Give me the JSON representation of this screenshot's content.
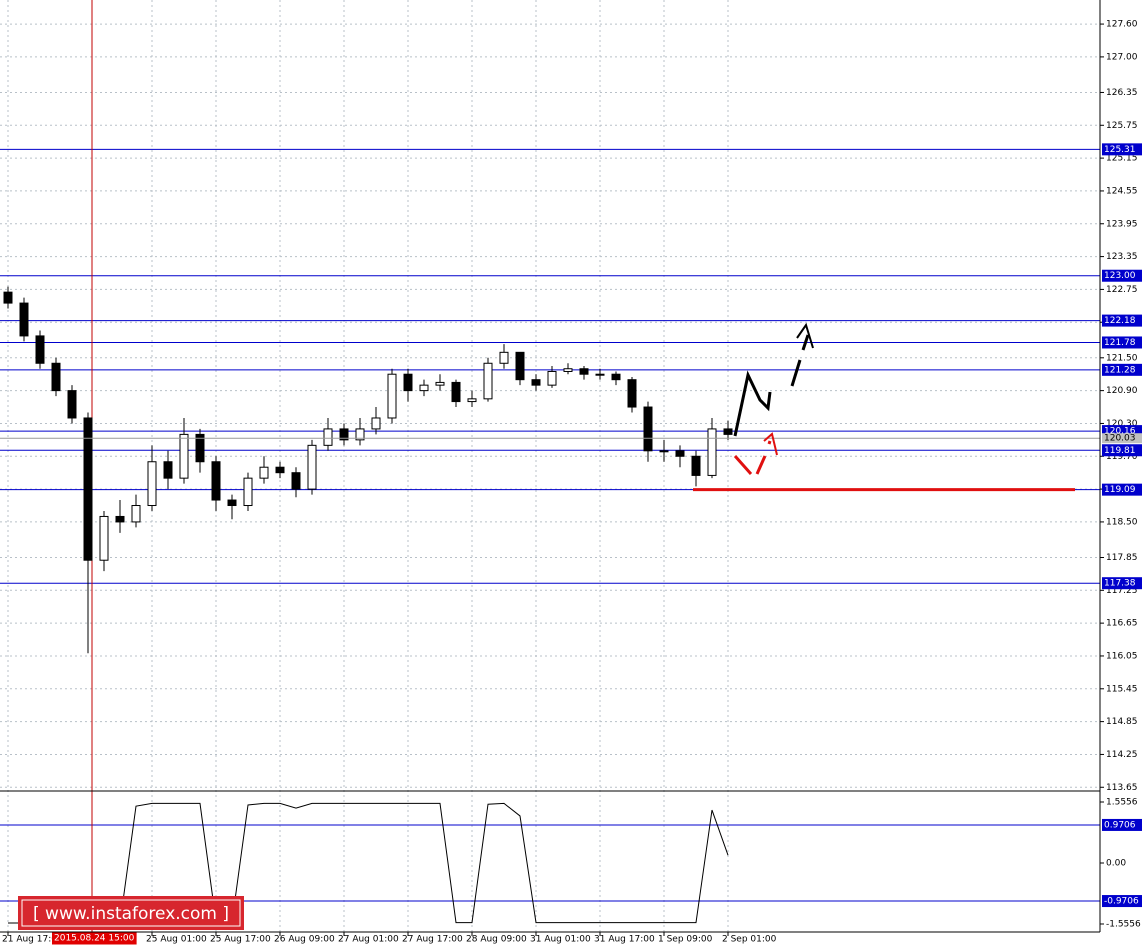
{
  "chart_data": [
    {
      "type": "candlestick",
      "categories": [
        "21 Aug 17:00",
        null,
        null,
        null,
        null,
        "2015.08.24 15:00",
        null,
        null,
        null,
        "25 Aug 01:00",
        null,
        null,
        null,
        "25 Aug 17:00",
        null,
        null,
        null,
        "26 Aug 09:00",
        null,
        null,
        null,
        "27 Aug 01:00",
        null,
        null,
        null,
        "27 Aug 17:00",
        null,
        null,
        null,
        "28 Aug 09:00",
        null,
        null,
        null,
        "31 Aug 01:00",
        null,
        null,
        null,
        "31 Aug 17:00",
        null,
        null,
        null,
        "1 Sep 09:00",
        null,
        null,
        null,
        "2 Sep 01:00"
      ],
      "crosshair": "2015.08.24 15:00",
      "open": [
        122.7,
        122.5,
        121.9,
        121.4,
        120.9,
        120.4,
        117.8,
        118.6,
        118.5,
        118.8,
        119.6,
        119.3,
        120.1,
        119.6,
        118.9,
        118.8,
        119.3,
        119.5,
        119.4,
        119.1,
        119.9,
        120.2,
        120.0,
        120.2,
        120.4,
        121.2,
        120.9,
        121.0,
        121.05,
        120.7,
        120.75,
        121.4,
        121.6,
        121.1,
        121.0,
        121.25,
        121.3,
        121.2,
        121.2,
        121.1,
        120.6,
        119.8,
        119.8,
        119.7,
        119.35,
        120.2
      ],
      "high": [
        122.8,
        122.6,
        122.0,
        121.5,
        121.0,
        120.5,
        118.7,
        118.9,
        119.0,
        119.9,
        119.8,
        120.4,
        120.2,
        119.7,
        119.0,
        119.4,
        119.7,
        119.6,
        119.5,
        120.0,
        120.4,
        120.3,
        120.4,
        120.6,
        121.3,
        121.3,
        121.1,
        121.2,
        121.1,
        120.9,
        121.5,
        121.75,
        121.6,
        121.2,
        121.35,
        121.4,
        121.35,
        121.3,
        121.25,
        121.15,
        120.7,
        120.0,
        119.9,
        119.8,
        120.4,
        120.35
      ],
      "low": [
        122.4,
        121.8,
        121.3,
        120.8,
        120.3,
        116.1,
        117.6,
        118.3,
        118.4,
        118.7,
        119.1,
        119.2,
        119.4,
        118.7,
        118.55,
        118.7,
        119.2,
        119.3,
        118.95,
        119.0,
        119.8,
        119.9,
        119.9,
        120.1,
        120.3,
        120.7,
        120.8,
        120.9,
        120.6,
        120.6,
        120.7,
        121.3,
        121.0,
        120.9,
        120.95,
        121.2,
        121.1,
        121.1,
        121.0,
        120.5,
        119.6,
        119.6,
        119.5,
        119.15,
        119.3,
        120.0
      ],
      "close": [
        122.5,
        121.9,
        121.4,
        120.9,
        120.4,
        117.8,
        118.6,
        118.5,
        118.8,
        119.6,
        119.3,
        120.1,
        119.6,
        118.9,
        118.8,
        119.3,
        119.5,
        119.4,
        119.1,
        119.9,
        120.2,
        120.0,
        120.2,
        120.4,
        121.2,
        120.9,
        121.0,
        121.05,
        120.7,
        120.75,
        121.4,
        121.6,
        121.1,
        121.0,
        121.25,
        121.3,
        121.2,
        121.2,
        121.1,
        120.6,
        119.8,
        119.8,
        119.7,
        119.35,
        120.2,
        120.1
      ],
      "ylim": [
        113.6,
        128.04
      ],
      "yticks": [
        {
          "value": 127.6,
          "label": "127.60"
        },
        {
          "value": 127,
          "label": "127.00"
        },
        126.35,
        125.75,
        125.15,
        124.55,
        123.95,
        123.35,
        122.75,
        122.15,
        {
          "value": 121.5,
          "label": "121.50"
        },
        {
          "value": 120.9,
          "label": "120.90"
        },
        {
          "value": 120.3,
          "label": "120.30"
        },
        {
          "value": 119.7,
          "label": "119.70"
        },
        {
          "value": 119.1,
          "label": "119.10"
        },
        {
          "value": 118.5,
          "label": "118.50"
        },
        117.85,
        117.25,
        116.65,
        116.05,
        115.45,
        114.85,
        114.25,
        113.65
      ],
      "levels": [
        125.31,
        {
          "value": 123,
          "label": "123.00"
        },
        122.18,
        121.78,
        121.28,
        120.16,
        119.81,
        119.09,
        117.38
      ],
      "level_color": "#0000cc",
      "last_price": 120.03,
      "support": 119.09,
      "support_color": "#e01010",
      "grid": true,
      "watermark": "[ www.instaforex.com ]"
    },
    {
      "type": "line",
      "values": [
        -1.53,
        -1.53,
        -1.53,
        -1.53,
        -1.53,
        -1.53,
        -1.53,
        -1.53,
        1.45,
        1.52,
        1.52,
        1.52,
        1.52,
        -1.5,
        -1.5,
        1.48,
        1.52,
        1.52,
        1.4,
        1.52,
        1.52,
        1.52,
        1.52,
        1.52,
        1.52,
        1.52,
        1.52,
        1.52,
        -1.52,
        -1.52,
        1.5,
        1.52,
        1.2,
        -1.52,
        -1.52,
        -1.52,
        -1.52,
        -1.52,
        -1.52,
        -1.52,
        -1.52,
        -1.52,
        -1.52,
        -1.52,
        1.35,
        0.2
      ],
      "color": "#000000",
      "ylim": [
        -1.709,
        1.76
      ],
      "yticks": [
        1.5556,
        {
          "value": 0,
          "label": "0.00"
        },
        -1.5556
      ],
      "levels": [
        0.9706,
        -0.9706
      ],
      "level_color": "#0000cc"
    }
  ]
}
